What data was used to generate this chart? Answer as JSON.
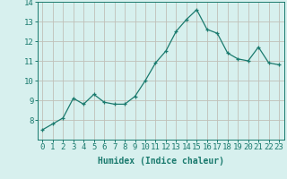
{
  "x": [
    0,
    1,
    2,
    3,
    4,
    5,
    6,
    7,
    8,
    9,
    10,
    11,
    12,
    13,
    14,
    15,
    16,
    17,
    18,
    19,
    20,
    21,
    22,
    23
  ],
  "y": [
    7.5,
    7.8,
    8.1,
    9.1,
    8.8,
    9.3,
    8.9,
    8.8,
    8.8,
    9.2,
    10.0,
    10.9,
    11.5,
    12.5,
    13.1,
    13.6,
    12.6,
    12.4,
    11.4,
    11.1,
    11.0,
    11.7,
    10.9,
    10.8
  ],
  "line_color": "#1a7a6e",
  "marker": "+",
  "marker_size": 3.5,
  "bg_color": "#d7f0ee",
  "grid_color": "#c0c0b8",
  "axis_color": "#1a7a6e",
  "xlabel": "Humidex (Indice chaleur)",
  "xlabel_fontsize": 7,
  "tick_fontsize": 6.5,
  "ylim": [
    7,
    14
  ],
  "xlim": [
    -0.5,
    23.5
  ],
  "yticks": [
    8,
    9,
    10,
    11,
    12,
    13,
    14
  ],
  "xticks": [
    0,
    1,
    2,
    3,
    4,
    5,
    6,
    7,
    8,
    9,
    10,
    11,
    12,
    13,
    14,
    15,
    16,
    17,
    18,
    19,
    20,
    21,
    22,
    23
  ]
}
